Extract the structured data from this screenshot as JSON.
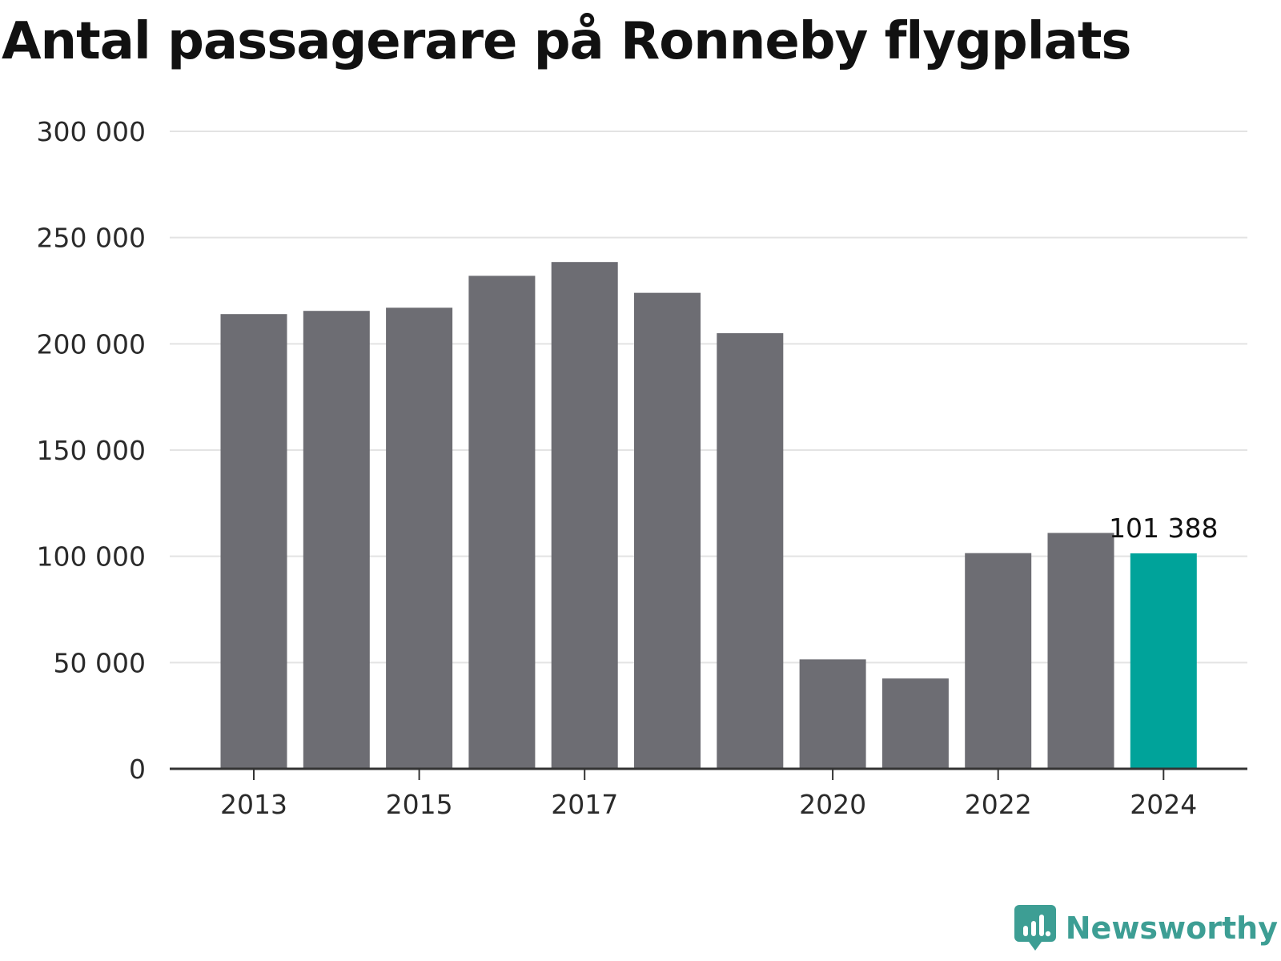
{
  "title": "Antal passagerare på Ronneby flygplats",
  "brand": {
    "name": "Newsworthy",
    "icon": "newsworthy-logo-icon",
    "color": "#3d9e94"
  },
  "colors": {
    "bar": "#6d6d73",
    "highlight": "#00a39a",
    "grid": "#e3e3e3",
    "axis": "#333333"
  },
  "chart_data": {
    "type": "bar",
    "title": "Antal passagerare på Ronneby flygplats",
    "xlabel": "",
    "ylabel": "",
    "categories": [
      "2013",
      "2014",
      "2015",
      "2016",
      "2017",
      "2018",
      "2019",
      "2020",
      "2021",
      "2022",
      "2023",
      "2024"
    ],
    "values": [
      214000,
      215500,
      217000,
      232000,
      238500,
      224000,
      205000,
      51500,
      42500,
      101500,
      111000,
      101388
    ],
    "x_tick_labels": [
      "2013",
      "",
      "2015",
      "",
      "2017",
      "",
      "",
      "2020",
      "",
      "2022",
      "",
      "2024"
    ],
    "y_ticks": [
      0,
      50000,
      100000,
      150000,
      200000,
      250000,
      300000
    ],
    "y_tick_labels": [
      "0",
      "50 000",
      "100 000",
      "150 000",
      "200 000",
      "250 000",
      "300 000"
    ],
    "ylim": [
      0,
      300000
    ],
    "grid": true,
    "highlight_index": 11,
    "annotations": [
      {
        "category": "2024",
        "text": "101 388"
      }
    ]
  }
}
